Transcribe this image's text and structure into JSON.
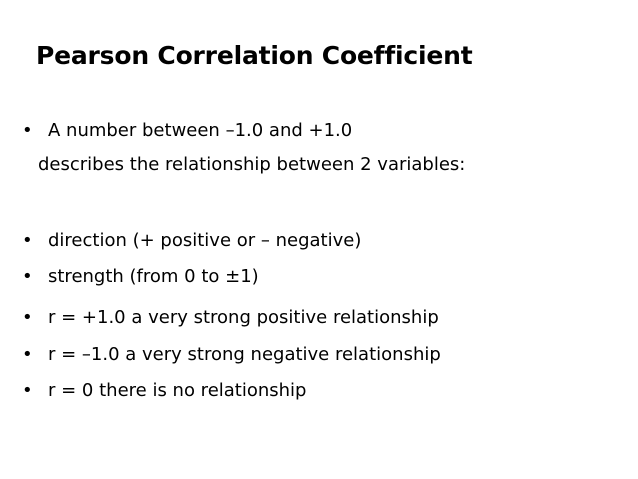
{
  "slide": {
    "title": "Pearson Correlation Coefficient",
    "bullet_char": "•",
    "intro": {
      "line1": "A number between –1.0 and +1.0",
      "line2": "describes the relationship between 2 variables:"
    },
    "bullets": [
      "direction (+ positive  or  – negative)",
      "strength (from 0 to ±1)",
      "r = +1.0 a very strong positive relationship",
      "r = –1.0 a very strong negative relationship",
      "r = 0 there is no relationship"
    ]
  }
}
